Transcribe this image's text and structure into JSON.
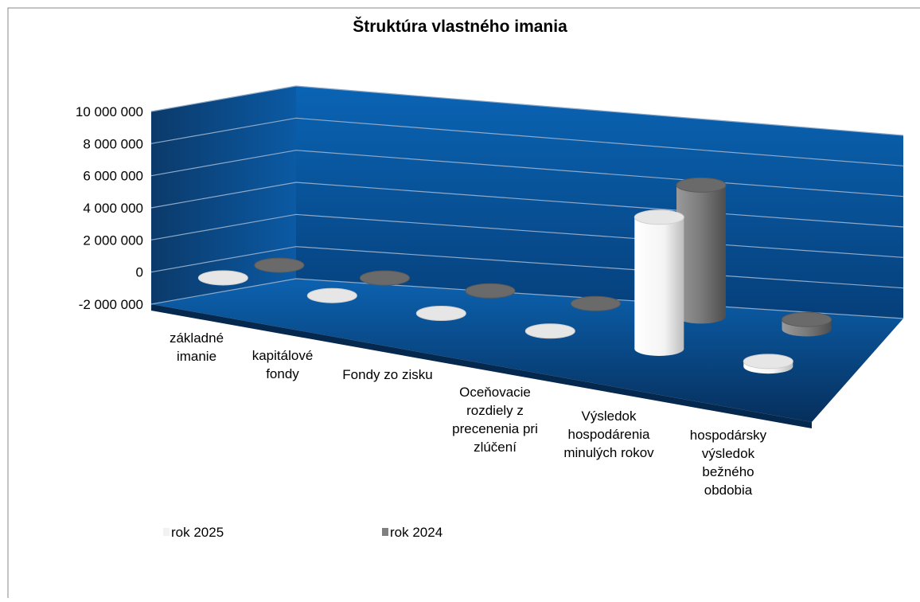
{
  "chart_data": {
    "type": "bar3d",
    "title": "Štruktúra vlastného imania",
    "categories": [
      "základné imanie",
      "kapitálové fondy",
      "Fondy zo zisku",
      "Oceňovacie rozdiely z precenenia pri zlúčení",
      "Výsledok hospodárenia minulých rokov",
      "hospodársky výsledok bežného obdobia"
    ],
    "series": [
      {
        "name": "rok 2025",
        "color": "#f2f2f2",
        "values": [
          0,
          0,
          0,
          0,
          7800000,
          300000
        ]
      },
      {
        "name": "rok 2024",
        "color": "#808080",
        "values": [
          0,
          0,
          0,
          0,
          8100000,
          600000
        ]
      }
    ],
    "ylim": [
      -2000000,
      10000000
    ],
    "yticks": [
      {
        "value": -2000000,
        "label": "-2 000 000"
      },
      {
        "value": 0,
        "label": "0"
      },
      {
        "value": 2000000,
        "label": "2 000 000"
      },
      {
        "value": 4000000,
        "label": "4 000 000"
      },
      {
        "value": 6000000,
        "label": "6 000 000"
      },
      {
        "value": 8000000,
        "label": "8 000 000"
      },
      {
        "value": 10000000,
        "label": "10 000 000"
      }
    ],
    "grid": true
  }
}
